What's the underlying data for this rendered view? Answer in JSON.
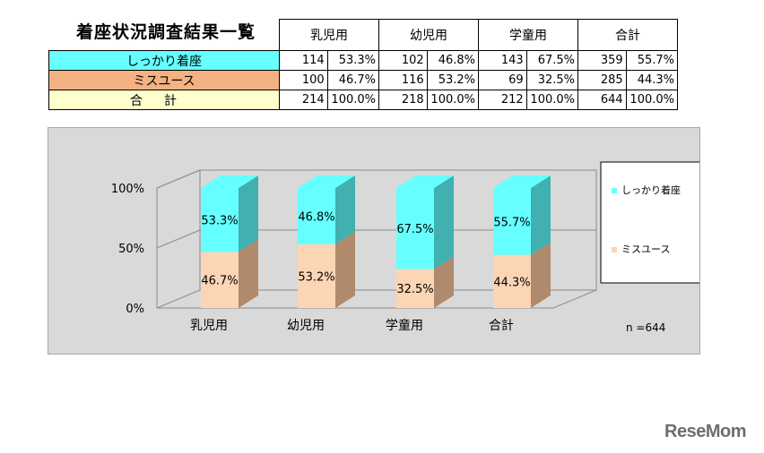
{
  "title": "着座状況調査結果一覧",
  "table": {
    "groups": [
      "乳児用",
      "幼児用",
      "学童用",
      "合計"
    ],
    "rows": [
      {
        "label": "しっかり着座",
        "cells": [
          [
            "114",
            "53.3%"
          ],
          [
            "102",
            "46.8%"
          ],
          [
            "143",
            "67.5%"
          ],
          [
            "359",
            "55.7%"
          ]
        ]
      },
      {
        "label": "ミスユース",
        "cells": [
          [
            "100",
            "46.7%"
          ],
          [
            "116",
            "53.2%"
          ],
          [
            "69",
            "32.5%"
          ],
          [
            "285",
            "44.3%"
          ]
        ]
      },
      {
        "label": "合計",
        "cells": [
          [
            "214",
            "100.0%"
          ],
          [
            "218",
            "100.0%"
          ],
          [
            "212",
            "100.0%"
          ],
          [
            "644",
            "100.0%"
          ]
        ]
      }
    ]
  },
  "chart_data": {
    "type": "bar",
    "stacked": true,
    "percent": true,
    "categories": [
      "乳児用",
      "幼児用",
      "学童用",
      "合計"
    ],
    "series": [
      {
        "name": "しっかり着座",
        "values": [
          53.3,
          46.8,
          67.5,
          55.7
        ],
        "labels": [
          "53.3%",
          "46.8%",
          "67.5%",
          "55.7%"
        ],
        "color": "#66ffff",
        "side_color": "#40b0b0"
      },
      {
        "name": "ミスユース",
        "values": [
          46.7,
          53.2,
          32.5,
          44.3
        ],
        "labels": [
          "46.7%",
          "53.2%",
          "32.5%",
          "44.3%"
        ],
        "color": "#fcd5b4",
        "side_color": "#b08a6c"
      }
    ],
    "y_ticks": [
      "0%",
      "50%",
      "100%"
    ],
    "ylim": [
      0,
      100
    ],
    "grid": true,
    "legend": "right",
    "annotation": "n =644"
  },
  "logo": "ReseMom"
}
